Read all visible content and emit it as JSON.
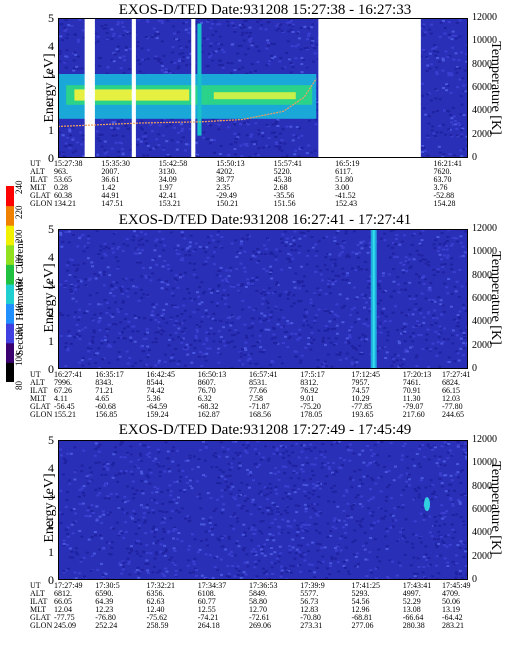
{
  "chart_data": [
    {
      "type": "heatmap",
      "title": "EXOS-D/TED   Date:931208   15:27:38 - 16:27:33",
      "ylabel": "Energy [eV]",
      "ylabel_right": "Temperature [K]",
      "ylim": [
        0,
        5
      ],
      "ylim_right": [
        0,
        12000
      ],
      "yticks": [
        "0",
        "1",
        "2",
        "3",
        "4",
        "5"
      ],
      "yticks_right": [
        "0",
        "2000",
        "4000",
        "6000",
        "8000",
        "10000",
        "12000"
      ],
      "data_gaps": [
        [
          0.065,
          0.09
        ],
        [
          0.18,
          0.19
        ],
        [
          0.325,
          0.335
        ],
        [
          0.635,
          0.885
        ]
      ],
      "temperature_curve": [
        [
          0.0,
          2700
        ],
        [
          0.2,
          3000
        ],
        [
          0.35,
          3100
        ],
        [
          0.45,
          3300
        ],
        [
          0.55,
          4000
        ],
        [
          0.6,
          5200
        ],
        [
          0.63,
          6800
        ]
      ],
      "ephemeris": {
        "labels": [
          "UT",
          "ALT",
          "ILAT",
          "MLT",
          "GLAT",
          "GLON"
        ],
        "columns": [
          [
            "15:27:38",
            "963.",
            "53.65",
            "0.28",
            "60.38",
            "134.21"
          ],
          [
            "15:35:30",
            "2007.",
            "36.61",
            "1.42",
            "44.91",
            "147.51"
          ],
          [
            "15:42:58",
            "3130.",
            "34.09",
            "1.97",
            "42.41",
            "153.21"
          ],
          [
            "15:50:13",
            "4202.",
            "38.77",
            "2.35",
            "-29.49",
            "150.21"
          ],
          [
            "15:57:41",
            "5220.",
            "45.38",
            "2.68",
            "-35.56",
            "151.56"
          ],
          [
            "16:5:19",
            "6117.",
            "51.80",
            "3.00",
            "-41.52",
            "152.43"
          ],
          [
            "16:21:41",
            "7620.",
            "63.70",
            "3.76",
            "-52.88",
            "154.28"
          ]
        ],
        "positions": [
          0.0,
          0.14,
          0.28,
          0.42,
          0.56,
          0.71,
          0.95
        ]
      }
    },
    {
      "type": "heatmap",
      "title": "EXOS-D/TED   Date:931208   16:27:41 - 17:27:41",
      "ylabel": "Energy [eV]",
      "ylabel_right": "Temperature [K]",
      "ylim": [
        0,
        5
      ],
      "ylim_right": [
        0,
        12000
      ],
      "yticks": [
        "0",
        "1",
        "2",
        "3",
        "4",
        "5"
      ],
      "yticks_right": [
        "0",
        "2000",
        "4000",
        "6000",
        "8000",
        "10000",
        "12000"
      ],
      "bright_stripe_at": 0.77,
      "colorbar": {
        "label": "Second Harmonic Current",
        "ticks": [
          "80",
          "100",
          "120",
          "140",
          "160",
          "180",
          "200",
          "220",
          "240"
        ]
      },
      "ephemeris": {
        "labels": [
          "UT",
          "ALT",
          "ILAT",
          "MLT",
          "GLAT",
          "GLON"
        ],
        "columns": [
          [
            "16:27:41",
            "7996.",
            "67.26",
            "4.11",
            "-56.45",
            "155.21"
          ],
          [
            "16:35:17",
            "8343.",
            "71.21",
            "4.65",
            "-60.68",
            "156.85"
          ],
          [
            "16:42:45",
            "8544.",
            "74.42",
            "5.36",
            "-64.59",
            "159.24"
          ],
          [
            "16:50:13",
            "8607.",
            "76.70",
            "6.32",
            "-68.32",
            "162.87"
          ],
          [
            "16:57:41",
            "8531.",
            "77.66",
            "7.58",
            "-71.87",
            "168.56"
          ],
          [
            "17:5:17",
            "8312.",
            "76.92",
            "9.01",
            "-75.20",
            "178.05"
          ],
          [
            "17:12:45",
            "7957.",
            "74.57",
            "10.29",
            "-77.85",
            "193.65"
          ],
          [
            "17:20:13",
            "7461.",
            "70.91",
            "11.30",
            "-79.07",
            "217.60"
          ],
          [
            "17:27:41",
            "6824.",
            "66.15",
            "12.03",
            "-77.80",
            "244.65"
          ]
        ],
        "positions": [
          0.0,
          0.125,
          0.25,
          0.375,
          0.5,
          0.625,
          0.75,
          0.875,
          1.0
        ]
      }
    },
    {
      "type": "heatmap",
      "title": "EXOS-D/TED   Date:931208   17:27:49 - 17:45:49",
      "ylabel": "Energy [eV]",
      "ylabel_right": "Temperature [K]",
      "ylim": [
        0,
        5
      ],
      "ylim_right": [
        0,
        12000
      ],
      "yticks": [
        "0",
        "1",
        "2",
        "3",
        "4",
        "5"
      ],
      "yticks_right": [
        "0",
        "2000",
        "4000",
        "6000",
        "8000",
        "10000",
        "12000"
      ],
      "bright_spot": [
        0.9,
        6500
      ],
      "ephemeris": {
        "labels": [
          "UT",
          "ALT",
          "ILAT",
          "MLT",
          "GLAT",
          "GLON"
        ],
        "columns": [
          [
            "17:27:49",
            "6812.",
            "66.05",
            "12.04",
            "-77.75",
            "245.09"
          ],
          [
            "17:30:5",
            "6590.",
            "64.39",
            "12.23",
            "-76.80",
            "252.24"
          ],
          [
            "17:32:21",
            "6356.",
            "62.63",
            "12.40",
            "-75.62",
            "258.59"
          ],
          [
            "17:34:37",
            "6108.",
            "60.77",
            "12.55",
            "-74.21",
            "264.18"
          ],
          [
            "17:36:53",
            "5849.",
            "58.80",
            "12.70",
            "-72.61",
            "269.06"
          ],
          [
            "17:39:9",
            "5577.",
            "56.73",
            "12.83",
            "-70.80",
            "273.31"
          ],
          [
            "17:41:25",
            "5293.",
            "54.56",
            "12.96",
            "-68.81",
            "277.06"
          ],
          [
            "17:43:41",
            "4997.",
            "52.29",
            "13.08",
            "-66.64",
            "280.38"
          ],
          [
            "17:45:49",
            "4709.",
            "50.06",
            "13.19",
            "-64.42",
            "283.21"
          ]
        ],
        "positions": [
          0.0,
          0.125,
          0.25,
          0.375,
          0.5,
          0.625,
          0.75,
          0.875,
          1.0
        ]
      }
    }
  ]
}
